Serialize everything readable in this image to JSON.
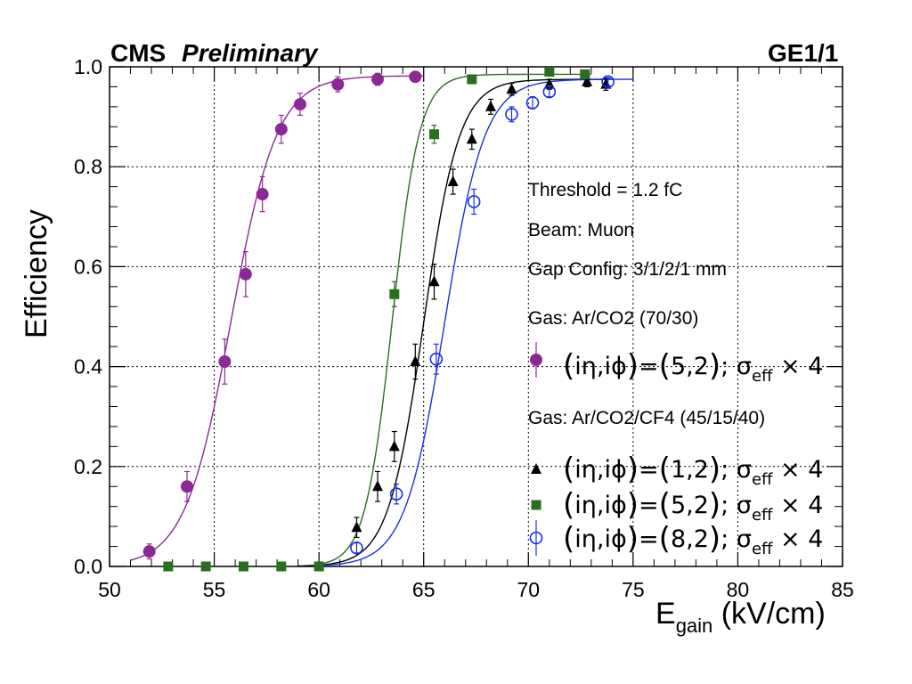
{
  "header": {
    "experiment": "CMS",
    "status": "Preliminary",
    "detector": "GE1/1"
  },
  "annotations": {
    "threshold": "Threshold = 1.2 fC",
    "beam": "Beam: Muon",
    "gap": "Gap Config: 3/1/2/1 mm",
    "gas1": "Gas: Ar/CO2 (70/30)",
    "gas2": "Gas: Ar/CO2/CF4 (45/15/40)"
  },
  "chart_data": {
    "type": "scatter",
    "title": "",
    "xlabel": "E",
    "xlabel_sub": "gain",
    "xlabel_unit": " (kV/cm)",
    "ylabel": "Efficiency",
    "xlim": [
      50,
      85
    ],
    "ylim": [
      0,
      1
    ],
    "x_ticks": [
      "50",
      "55",
      "60",
      "65",
      "70",
      "75",
      "80",
      "85"
    ],
    "y_ticks": [
      "0.0",
      "0.2",
      "0.4",
      "0.6",
      "0.8",
      "1.0"
    ],
    "grid": true,
    "legend_position": "right",
    "series": [
      {
        "color": "#8c2996",
        "marker": "circle-filled",
        "legend_label": "(iη,iϕ)=(5,2); σeff × 4",
        "x": [
          51.9,
          53.7,
          55.5,
          56.5,
          57.3,
          58.2,
          59.1,
          60.9,
          62.8,
          64.6
        ],
        "y": [
          0.03,
          0.16,
          0.41,
          0.585,
          0.745,
          0.875,
          0.925,
          0.965,
          0.975,
          0.98
        ],
        "err": [
          0.015,
          0.03,
          0.045,
          0.045,
          0.035,
          0.028,
          0.022,
          0.015,
          0.012,
          0.01
        ],
        "fit": {
          "mid": 55.8,
          "width": 1.1,
          "plateau": 0.982,
          "x_range": [
            51,
            65
          ]
        }
      },
      {
        "color": "#000000",
        "marker": "triangle-filled",
        "legend_label": "(iη,iϕ)=(1,2); σeff × 4",
        "x": [
          61.8,
          62.8,
          63.6,
          64.6,
          65.5,
          66.4,
          67.3,
          68.2,
          69.2,
          71.0,
          72.8,
          73.7
        ],
        "y": [
          0.078,
          0.16,
          0.24,
          0.41,
          0.57,
          0.77,
          0.855,
          0.92,
          0.955,
          0.965,
          0.97,
          0.965
        ],
        "err": [
          0.02,
          0.03,
          0.03,
          0.035,
          0.035,
          0.025,
          0.02,
          0.015,
          0.012,
          0.01,
          0.01,
          0.012
        ],
        "fit": {
          "mid": 65.0,
          "width": 0.85,
          "plateau": 0.975,
          "x_range": [
            59,
            74
          ]
        }
      },
      {
        "color": "#2a6e20",
        "marker": "square-filled",
        "legend_label": "(iη,iϕ)=(5,2); σeff × 4",
        "x": [
          52.8,
          54.6,
          56.4,
          58.2,
          60.0,
          63.6,
          65.5,
          67.3,
          71.0,
          72.7
        ],
        "y": [
          0.0,
          0.0,
          0.0,
          0.0,
          0.0,
          0.545,
          0.865,
          0.975,
          0.99,
          0.985
        ],
        "err": [
          0,
          0,
          0,
          0,
          0,
          0.025,
          0.018,
          0.008,
          0.006,
          0.006
        ],
        "fit": {
          "mid": 63.5,
          "width": 0.65,
          "plateau": 0.985,
          "x_range": [
            60,
            73
          ]
        }
      },
      {
        "color": "#1a2ee8",
        "marker": "circle-open",
        "legend_label": "(iη,iϕ)=(8,2); σeff × 4",
        "x": [
          61.8,
          63.7,
          65.6,
          67.4,
          69.2,
          70.2,
          71.0,
          73.8
        ],
        "y": [
          0.037,
          0.145,
          0.415,
          0.73,
          0.905,
          0.928,
          0.95,
          0.97
        ],
        "err": [
          0.01,
          0.02,
          0.03,
          0.025,
          0.015,
          0.012,
          0.01,
          0.008
        ],
        "fit": {
          "mid": 66.0,
          "width": 0.95,
          "plateau": 0.975,
          "x_range": [
            60,
            75
          ]
        }
      }
    ]
  }
}
